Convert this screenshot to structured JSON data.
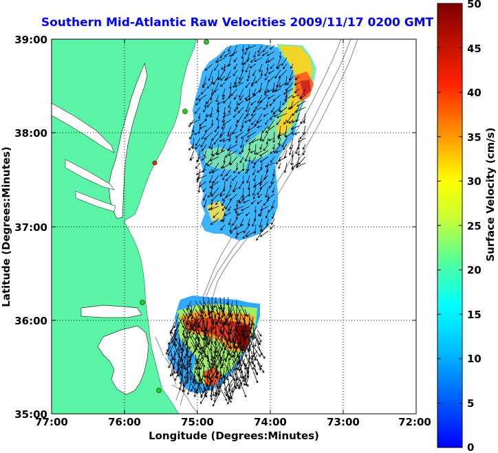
{
  "title": "Southern Mid-Atlantic Raw Velocities 2009/11/17 0200 GMT",
  "title_color": "#0000ff",
  "map": {
    "xlabel": "Longitude (Degrees:Minutes)",
    "ylabel": "Latitude (Degrees:Minutes)",
    "x_ticks": [
      "77:00",
      "76:00",
      "75:00",
      "74:00",
      "73:00",
      "72:00"
    ],
    "y_ticks": [
      "39:00",
      "38:00",
      "37:00",
      "36:00",
      "35:00"
    ],
    "lon_range": [
      -77,
      -72
    ],
    "lat_range": [
      35,
      39
    ],
    "grid": true,
    "land_color": "#5cf5a8",
    "ocean_color": "#ffffff",
    "station_color": "#22cc22",
    "station_alt_color": "#dd3311"
  },
  "colorbar": {
    "label": "Surface Velocity (cm/s)",
    "ticks": [
      "50",
      "45",
      "40",
      "35",
      "30",
      "25",
      "20",
      "15",
      "10",
      "5",
      "0"
    ],
    "range": [
      0,
      50
    ],
    "colors": [
      "#0000ff",
      "#00aaff",
      "#00ffff",
      "#55ff99",
      "#ffff00",
      "#ff9900",
      "#ff0000",
      "#800000"
    ]
  }
}
